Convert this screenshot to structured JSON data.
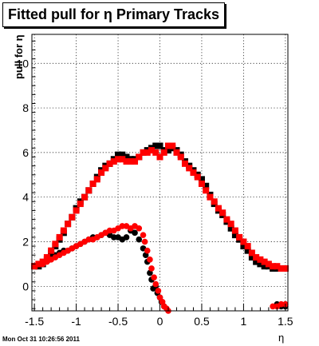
{
  "title": "Fitted pull for η  Primary Tracks",
  "footer": "Mon Oct 31 10:26:56 2011",
  "colors": {
    "series_black": "#000000",
    "series_red": "#ff0000",
    "grid": "#000000"
  },
  "chart_data": {
    "type": "scatter",
    "title": "Fitted pull for η  Primary Tracks",
    "xlabel": "η",
    "ylabel": "pull for η",
    "xlim": [
      -1.53,
      1.53
    ],
    "ylim": [
      -1.1,
      11.3
    ],
    "xticks": [
      -1.5,
      -1,
      -0.5,
      0,
      0.5,
      1,
      1.5
    ],
    "xtick_labels": [
      "-1.5",
      "-1",
      "-0.5",
      "0",
      "0.5",
      "1",
      "1.5"
    ],
    "yticks": [
      0,
      2,
      4,
      6,
      8,
      10
    ],
    "ytick_labels": [
      "0",
      "2",
      "4",
      "6",
      "8",
      "10"
    ],
    "grid": true,
    "series": [
      {
        "marker": "square",
        "color": "#000000",
        "x": [
          -1.5,
          -1.45,
          -1.4,
          -1.35,
          -1.3,
          -1.25,
          -1.2,
          -1.15,
          -1.1,
          -1.05,
          -1.0,
          -0.95,
          -0.9,
          -0.85,
          -0.8,
          -0.75,
          -0.7,
          -0.65,
          -0.6,
          -0.55,
          -0.5,
          -0.45,
          -0.4,
          -0.35,
          -0.3,
          -0.25,
          -0.2,
          -0.15,
          -0.1,
          -0.05,
          0.0,
          0.05,
          0.1,
          0.15,
          0.2,
          0.25,
          0.3,
          0.35,
          0.4,
          0.45,
          0.5,
          0.55,
          0.6,
          0.65,
          0.7,
          0.75,
          0.8,
          0.85,
          0.9,
          0.95,
          1.0,
          1.05,
          1.1,
          1.15,
          1.2,
          1.25,
          1.3,
          1.35,
          1.4,
          1.45,
          1.5
        ],
        "y": [
          0.9,
          0.9,
          1.0,
          1.2,
          1.5,
          1.8,
          2.1,
          2.4,
          2.8,
          3.1,
          3.5,
          3.8,
          4.0,
          4.3,
          4.6,
          4.9,
          5.2,
          5.4,
          5.5,
          5.7,
          5.9,
          5.9,
          5.8,
          5.7,
          5.7,
          5.8,
          6.0,
          6.1,
          6.2,
          6.3,
          6.3,
          6.1,
          6.1,
          6.2,
          6.1,
          5.9,
          5.6,
          5.4,
          5.2,
          5.0,
          4.8,
          4.5,
          4.1,
          3.7,
          3.4,
          3.2,
          2.9,
          2.6,
          2.3,
          2.1,
          1.8,
          1.6,
          1.3,
          1.1,
          1.0,
          0.9,
          0.9,
          0.8,
          0.8,
          0.8,
          0.8
        ]
      },
      {
        "marker": "circle",
        "color": "#000000",
        "x": [
          -1.5,
          -1.45,
          -1.4,
          -1.35,
          -1.3,
          -1.25,
          -1.2,
          -1.15,
          -1.1,
          -1.05,
          -1.0,
          -0.95,
          -0.9,
          -0.85,
          -0.8,
          -0.75,
          -0.7,
          -0.65,
          -0.6,
          -0.55,
          -0.5,
          -0.45,
          -0.4,
          -0.35,
          -0.3,
          -0.25,
          -0.2,
          -0.17,
          -0.15,
          -0.12,
          -0.1,
          -0.08,
          -0.05,
          -0.03,
          0.0,
          0.02,
          0.05,
          1.4,
          1.45,
          1.5
        ],
        "y": [
          0.9,
          1.0,
          1.1,
          1.2,
          1.3,
          1.4,
          1.5,
          1.6,
          1.6,
          1.7,
          1.8,
          1.9,
          2.0,
          2.1,
          2.2,
          2.2,
          2.3,
          2.4,
          2.3,
          2.2,
          2.2,
          2.1,
          2.2,
          2.5,
          2.4,
          2.1,
          1.7,
          1.4,
          1.1,
          0.6,
          0.3,
          -0.1,
          0.0,
          -0.3,
          -0.5,
          -0.7,
          -0.9,
          -0.8,
          -0.9,
          -0.9
        ]
      },
      {
        "marker": "square",
        "color": "#ff0000",
        "x": [
          -1.5,
          -1.45,
          -1.4,
          -1.35,
          -1.3,
          -1.25,
          -1.2,
          -1.15,
          -1.1,
          -1.05,
          -1.0,
          -0.95,
          -0.9,
          -0.85,
          -0.8,
          -0.75,
          -0.7,
          -0.65,
          -0.6,
          -0.55,
          -0.5,
          -0.45,
          -0.4,
          -0.35,
          -0.3,
          -0.25,
          -0.2,
          -0.15,
          -0.1,
          -0.05,
          0.0,
          0.05,
          0.1,
          0.15,
          0.2,
          0.25,
          0.3,
          0.35,
          0.4,
          0.45,
          0.5,
          0.55,
          0.6,
          0.65,
          0.7,
          0.75,
          0.8,
          0.85,
          0.9,
          0.95,
          1.0,
          1.05,
          1.1,
          1.15,
          1.2,
          1.25,
          1.3,
          1.35,
          1.4,
          1.45,
          1.5
        ],
        "y": [
          0.9,
          1.0,
          1.1,
          1.3,
          1.6,
          1.9,
          2.2,
          2.5,
          2.8,
          3.1,
          3.4,
          3.7,
          4.0,
          4.3,
          4.6,
          4.8,
          5.1,
          5.3,
          5.5,
          5.6,
          5.7,
          5.7,
          5.6,
          5.6,
          5.6,
          5.8,
          6.0,
          6.0,
          6.1,
          6.0,
          5.8,
          6.0,
          6.3,
          6.3,
          6.0,
          5.8,
          5.5,
          5.3,
          5.1,
          4.9,
          4.6,
          4.3,
          4.0,
          3.8,
          3.5,
          3.3,
          3.0,
          2.8,
          2.5,
          2.2,
          2.0,
          1.8,
          1.5,
          1.3,
          1.2,
          1.1,
          1.0,
          0.9,
          0.9,
          0.8,
          0.8
        ]
      },
      {
        "marker": "circle",
        "color": "#ff0000",
        "x": [
          -1.5,
          -1.45,
          -1.4,
          -1.35,
          -1.3,
          -1.25,
          -1.2,
          -1.15,
          -1.1,
          -1.05,
          -1.0,
          -0.95,
          -0.9,
          -0.85,
          -0.8,
          -0.75,
          -0.7,
          -0.65,
          -0.6,
          -0.55,
          -0.5,
          -0.45,
          -0.4,
          -0.35,
          -0.3,
          -0.25,
          -0.2,
          -0.18,
          -0.15,
          -0.12,
          -0.1,
          -0.07,
          -0.05,
          -0.02,
          0.0,
          0.03,
          0.05,
          0.08,
          0.1,
          1.35,
          1.4,
          1.45,
          1.5
        ],
        "y": [
          0.9,
          1.0,
          1.0,
          1.1,
          1.2,
          1.3,
          1.4,
          1.5,
          1.6,
          1.7,
          1.8,
          1.9,
          2.0,
          2.1,
          2.1,
          2.2,
          2.3,
          2.4,
          2.5,
          2.5,
          2.6,
          2.7,
          2.7,
          2.6,
          2.7,
          2.6,
          2.3,
          2.0,
          1.6,
          1.2,
          0.8,
          0.4,
          0.1,
          -0.2,
          -0.5,
          -0.7,
          -0.9,
          -1.0,
          -1.1,
          -0.9,
          -0.9,
          -0.8,
          -0.8
        ]
      }
    ]
  }
}
